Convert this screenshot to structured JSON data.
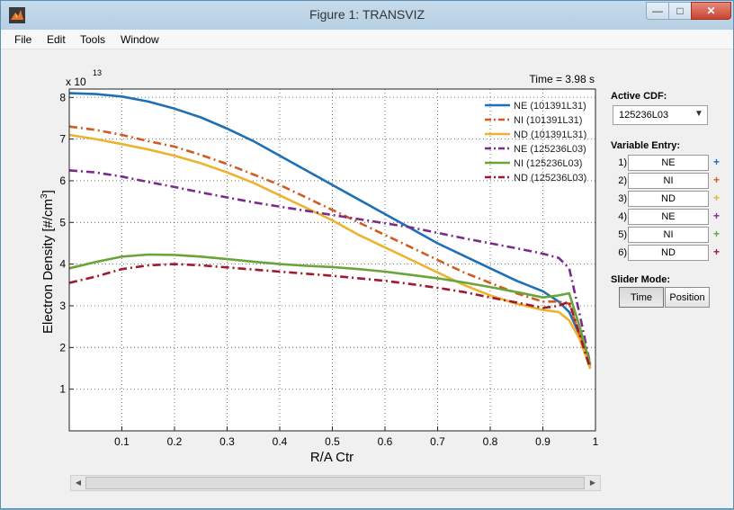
{
  "window": {
    "title": "Figure 1: TRANSVIZ"
  },
  "menu": [
    "File",
    "Edit",
    "Tools",
    "Window"
  ],
  "plot": {
    "time_label": "Time = 3.98 s",
    "exponent_base": "x 10",
    "exponent_power": "13",
    "xlabel": "R/A Ctr",
    "ylabel_main": "Electron Density [#/cm",
    "ylabel_sup": "3",
    "ylabel_end": "]"
  },
  "side": {
    "active_cdf_label": "Active CDF:",
    "active_cdf_value": "125236L03",
    "variable_entry_label": "Variable Entry:",
    "entries": [
      {
        "num": "1)",
        "value": "NE"
      },
      {
        "num": "2)",
        "value": "NI"
      },
      {
        "num": "3)",
        "value": "ND"
      },
      {
        "num": "4)",
        "value": "NE"
      },
      {
        "num": "5)",
        "value": "NI"
      },
      {
        "num": "6)",
        "value": "ND"
      }
    ],
    "plus": "+",
    "slider_mode_label": "Slider Mode:",
    "time_button": "Time",
    "position_button": "Position"
  },
  "colors": {
    "ne1": "#1f6fb4",
    "ni1": "#d35a22",
    "nd1": "#ecb32f",
    "ne2": "#7a2b8c",
    "ni2": "#6aa43a",
    "nd2": "#a1192f"
  },
  "chart_data": {
    "type": "line",
    "xlabel": "R/A Ctr",
    "ylabel": "Electron Density [#/cm3]",
    "y_multiplier": "x 10^13",
    "xlim": [
      0.0,
      1.0
    ],
    "ylim": [
      0,
      8.2
    ],
    "xticks": [
      "0.1",
      "0.2",
      "0.3",
      "0.4",
      "0.5",
      "0.6",
      "0.7",
      "0.8",
      "0.9",
      "1"
    ],
    "yticks": [
      "1",
      "2",
      "3",
      "4",
      "5",
      "6",
      "7",
      "8"
    ],
    "grid": true,
    "legend_position": "top-right",
    "series": [
      {
        "name": "NE (101391L31)",
        "style": "solid",
        "color_key": "ne1",
        "x": [
          0.0,
          0.05,
          0.1,
          0.15,
          0.2,
          0.25,
          0.3,
          0.35,
          0.4,
          0.45,
          0.5,
          0.55,
          0.6,
          0.65,
          0.7,
          0.75,
          0.8,
          0.85,
          0.9,
          0.93,
          0.95,
          0.97,
          0.99
        ],
        "y": [
          8.1,
          8.08,
          8.02,
          7.9,
          7.73,
          7.52,
          7.25,
          6.95,
          6.6,
          6.25,
          5.9,
          5.55,
          5.2,
          4.85,
          4.5,
          4.2,
          3.9,
          3.6,
          3.35,
          3.1,
          2.85,
          2.3,
          1.6
        ]
      },
      {
        "name": "NI (101391L31)",
        "style": "dashdot",
        "color_key": "ni1",
        "x": [
          0.0,
          0.05,
          0.1,
          0.15,
          0.2,
          0.25,
          0.3,
          0.35,
          0.4,
          0.45,
          0.5,
          0.55,
          0.6,
          0.65,
          0.7,
          0.75,
          0.8,
          0.85,
          0.9,
          0.93,
          0.95,
          0.97,
          0.99
        ],
        "y": [
          7.3,
          7.22,
          7.1,
          6.95,
          6.82,
          6.62,
          6.4,
          6.15,
          5.9,
          5.6,
          5.3,
          5.0,
          4.7,
          4.4,
          4.1,
          3.8,
          3.55,
          3.3,
          3.1,
          3.1,
          3.05,
          2.3,
          1.55
        ]
      },
      {
        "name": "ND (101391L31)",
        "style": "solid",
        "color_key": "nd1",
        "x": [
          0.0,
          0.05,
          0.1,
          0.15,
          0.2,
          0.25,
          0.3,
          0.35,
          0.4,
          0.45,
          0.5,
          0.55,
          0.6,
          0.65,
          0.7,
          0.75,
          0.8,
          0.85,
          0.9,
          0.93,
          0.95,
          0.97,
          0.99
        ],
        "y": [
          7.1,
          7.0,
          6.88,
          6.75,
          6.6,
          6.42,
          6.2,
          5.95,
          5.65,
          5.35,
          5.05,
          4.7,
          4.4,
          4.1,
          3.8,
          3.5,
          3.25,
          3.05,
          2.9,
          2.85,
          2.65,
          2.2,
          1.5
        ]
      },
      {
        "name": "NE (125236L03)",
        "style": "dashdot",
        "color_key": "ne2",
        "x": [
          0.0,
          0.05,
          0.1,
          0.15,
          0.2,
          0.25,
          0.3,
          0.35,
          0.4,
          0.45,
          0.5,
          0.55,
          0.6,
          0.65,
          0.7,
          0.75,
          0.8,
          0.85,
          0.9,
          0.93,
          0.95,
          0.97,
          0.99
        ],
        "y": [
          6.25,
          6.2,
          6.1,
          5.97,
          5.85,
          5.72,
          5.6,
          5.48,
          5.38,
          5.28,
          5.18,
          5.08,
          4.98,
          4.88,
          4.75,
          4.62,
          4.5,
          4.38,
          4.25,
          4.15,
          3.9,
          2.8,
          1.6
        ]
      },
      {
        "name": "NI (125236L03)",
        "style": "solid",
        "color_key": "ni2",
        "x": [
          0.0,
          0.05,
          0.1,
          0.15,
          0.2,
          0.25,
          0.3,
          0.35,
          0.4,
          0.45,
          0.5,
          0.55,
          0.6,
          0.65,
          0.7,
          0.75,
          0.8,
          0.85,
          0.9,
          0.93,
          0.95,
          0.97,
          0.99
        ],
        "y": [
          3.9,
          4.05,
          4.18,
          4.23,
          4.22,
          4.18,
          4.12,
          4.06,
          4.0,
          3.96,
          3.93,
          3.88,
          3.82,
          3.74,
          3.66,
          3.56,
          3.45,
          3.33,
          3.2,
          3.25,
          3.3,
          2.5,
          1.6
        ]
      },
      {
        "name": "ND (125236L03)",
        "style": "dashdot",
        "color_key": "nd2",
        "x": [
          0.0,
          0.05,
          0.1,
          0.15,
          0.2,
          0.25,
          0.3,
          0.35,
          0.4,
          0.45,
          0.5,
          0.55,
          0.6,
          0.65,
          0.7,
          0.75,
          0.8,
          0.85,
          0.9,
          0.93,
          0.95,
          0.97,
          0.99
        ],
        "y": [
          3.55,
          3.7,
          3.88,
          3.97,
          4.0,
          3.97,
          3.92,
          3.87,
          3.82,
          3.77,
          3.72,
          3.66,
          3.6,
          3.52,
          3.43,
          3.33,
          3.2,
          3.08,
          2.95,
          3.0,
          3.1,
          2.3,
          1.5
        ]
      }
    ]
  }
}
